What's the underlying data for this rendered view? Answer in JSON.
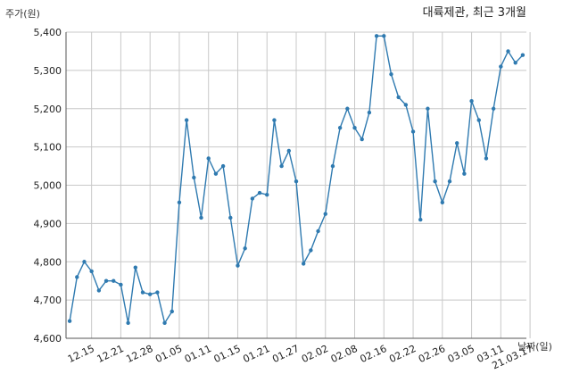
{
  "title": "대륙제관, 최근 3개월",
  "y_unit_label": "주가(원)",
  "x_unit_label": "날짜(일)",
  "chart_data": {
    "type": "line",
    "title": "대륙제관, 최근 3개월",
    "ylabel": "주가(원)",
    "xlabel": "날짜(일)",
    "ylim": [
      4600,
      5400
    ],
    "y_ticks": [
      4600,
      4700,
      4800,
      4900,
      5000,
      5100,
      5200,
      5300,
      5400
    ],
    "y_tick_labels": [
      "4,600",
      "4,700",
      "4,800",
      "4,900",
      "5,000",
      "5,100",
      "5,200",
      "5,300",
      "5,400"
    ],
    "x_tick_labels": [
      "12.15",
      "12.21",
      "12.28",
      "01.05",
      "01.11",
      "01.15",
      "01.21",
      "01.27",
      "02.02",
      "02.08",
      "02.16",
      "02.22",
      "02.26",
      "03.05",
      "03.11",
      "21.03.17"
    ],
    "x_tick_indices": [
      3,
      7,
      11,
      15,
      19,
      23,
      27,
      31,
      35,
      39,
      43,
      47,
      51,
      55,
      59,
      63
    ],
    "grid": true,
    "line_color": "#2f7ab0",
    "series": [
      {
        "values": [
          4645,
          4760,
          4800,
          4775,
          4725,
          4750,
          4750,
          4740,
          4640,
          4785,
          4720,
          4715,
          4720,
          4640,
          4670,
          4955,
          5170,
          5020,
          4915,
          5070,
          5030,
          5050,
          4915,
          4790,
          4835,
          4965,
          4980,
          4975,
          5170,
          5050,
          5090,
          5010,
          4795,
          4830,
          4880,
          4925,
          5050,
          5150,
          5200,
          5150,
          5120,
          5190,
          5390,
          5390,
          5290,
          5230,
          5210,
          5140,
          4910,
          5200,
          5010,
          4955,
          5010,
          5110,
          5030,
          5220,
          5170,
          5070,
          5200,
          5310,
          5350,
          5320,
          5340
        ]
      }
    ]
  }
}
